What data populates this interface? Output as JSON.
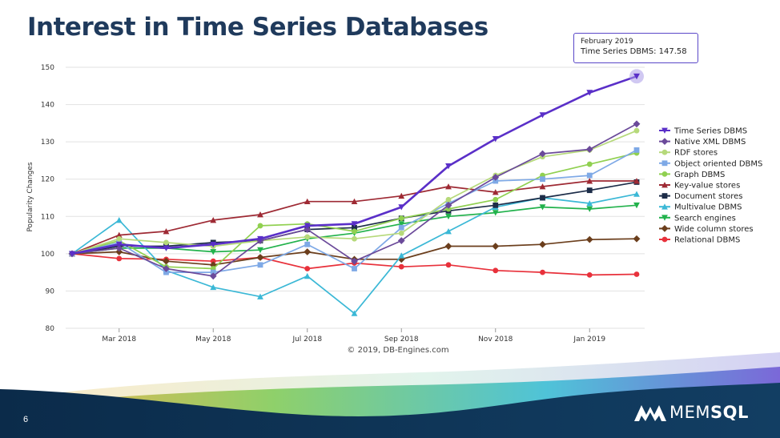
{
  "slide": {
    "title": "Interest in Time Series Databases",
    "number": "6",
    "logo_text_regular": "MEM",
    "logo_text_bold": "SQL"
  },
  "tooltip": {
    "line1": "February 2019",
    "line2": "Time Series DBMS: 147.58"
  },
  "colors": {
    "title": "#1f3a5c",
    "tooltip_border": "#5a48c8"
  },
  "chart_data": {
    "type": "line",
    "title": "",
    "ylabel": "Popularity Changes",
    "xlabel": "",
    "credit": "© 2019, DB-Engines.com",
    "ylim": [
      80,
      150
    ],
    "yticks": [
      80,
      90,
      100,
      110,
      120,
      130,
      140,
      150
    ],
    "x_months": [
      "Feb 2018",
      "Mar 2018",
      "Apr 2018",
      "May 2018",
      "Jun 2018",
      "Jul 2018",
      "Aug 2018",
      "Sep 2018",
      "Oct 2018",
      "Nov 2018",
      "Dec 2018",
      "Jan 2019",
      "Feb 2019"
    ],
    "x_tick_labels": [
      "Mar 2018",
      "May 2018",
      "Jul 2018",
      "Sep 2018",
      "Nov 2018",
      "Jan 2019"
    ],
    "x_tick_index": [
      1,
      3,
      5,
      7,
      9,
      11
    ],
    "series": [
      {
        "name": "Time Series DBMS",
        "color": "#5a2fc8",
        "marker": "tri-down",
        "values": [
          100,
          102.5,
          101.5,
          102.5,
          104,
          107.5,
          108,
          112.5,
          123.5,
          130.8,
          137.2,
          143.2,
          147.58
        ]
      },
      {
        "name": "Native XML DBMS",
        "color": "#6b4a9a",
        "marker": "diamond",
        "values": [
          100,
          101.5,
          96,
          94,
          103.5,
          106.5,
          98,
          103.5,
          113,
          120.5,
          126.8,
          128,
          134.8
        ]
      },
      {
        "name": "RDF stores",
        "color": "#b6d97a",
        "marker": "circle",
        "values": [
          100,
          104,
          103,
          102,
          103.5,
          104.5,
          104,
          105.5,
          114.5,
          121,
          126,
          127.8,
          133
        ]
      },
      {
        "name": "Object oriented DBMS",
        "color": "#7ea9e6",
        "marker": "square",
        "values": [
          100,
          103,
          95,
          95,
          97,
          102.5,
          96,
          107,
          113.5,
          119.5,
          120,
          121,
          127.8
        ]
      },
      {
        "name": "Graph DBMS",
        "color": "#90d050",
        "marker": "circle",
        "values": [
          100,
          103.5,
          96.5,
          96,
          107.5,
          108,
          106,
          109.5,
          112,
          114.5,
          121,
          124,
          127
        ]
      },
      {
        "name": "Key-value stores",
        "color": "#9e2a34",
        "marker": "triangle",
        "values": [
          100,
          105,
          106,
          109,
          110.5,
          114,
          114,
          115.5,
          118,
          116.5,
          118,
          119.5,
          119.5
        ]
      },
      {
        "name": "Document stores",
        "color": "#1c2c48",
        "marker": "square",
        "values": [
          100,
          102,
          102,
          103,
          103.5,
          106.5,
          107,
          109.5,
          111.5,
          113,
          115,
          117,
          119.2
        ]
      },
      {
        "name": "Multivalue DBMS",
        "color": "#3bb8d6",
        "marker": "tri-up",
        "values": [
          100,
          109,
          95.5,
          91,
          88.5,
          94,
          84,
          99.5,
          106,
          112.5,
          115,
          113.5,
          116
        ]
      },
      {
        "name": "Search engines",
        "color": "#22b24c",
        "marker": "tri-down",
        "values": [
          100,
          101.5,
          101.5,
          100.5,
          101,
          104,
          105.5,
          108,
          110,
          111,
          112.5,
          112,
          113
        ]
      },
      {
        "name": "Wide column stores",
        "color": "#6b3e1c",
        "marker": "diamond",
        "values": [
          100,
          100.5,
          98,
          97,
          99,
          100.5,
          98.5,
          98.5,
          102,
          102,
          102.5,
          103.8,
          104
        ]
      },
      {
        "name": "Relational DBMS",
        "color": "#e8313b",
        "marker": "circle",
        "values": [
          100,
          98.7,
          98.5,
          98,
          99,
          96,
          97.5,
          96.5,
          97,
          95.5,
          95,
          94.3,
          94.5
        ]
      }
    ]
  }
}
